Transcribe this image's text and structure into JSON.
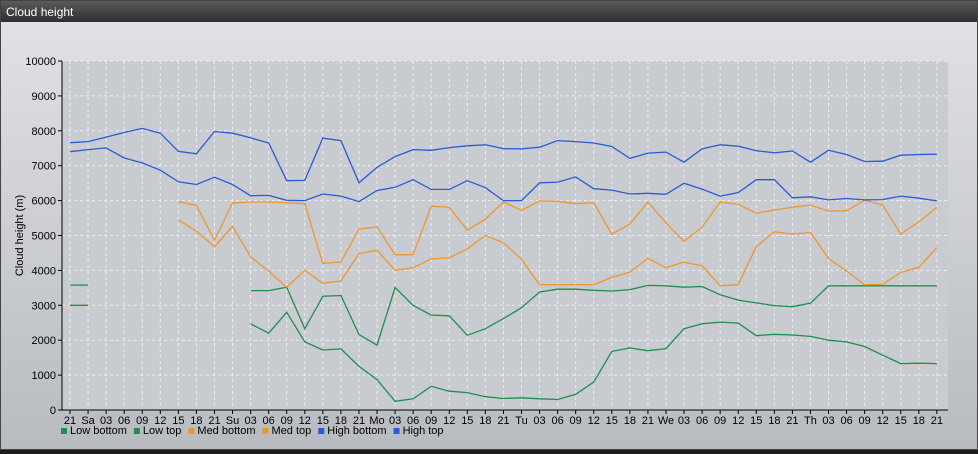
{
  "window": {
    "title": "Cloud height"
  },
  "chart_data": {
    "type": "line",
    "title": "",
    "ylabel": "Cloud height (m)",
    "xlabel": "",
    "ylim": [
      0,
      10000
    ],
    "yticks": [
      0,
      1000,
      2000,
      3000,
      4000,
      5000,
      6000,
      7000,
      8000,
      9000,
      10000
    ],
    "grid": true,
    "legend_position": "bottom-left",
    "categories": [
      "21",
      "Sa",
      "03",
      "06",
      "09",
      "12",
      "15",
      "18",
      "21",
      "Su",
      "03",
      "06",
      "09",
      "12",
      "15",
      "18",
      "21",
      "Mo",
      "03",
      "06",
      "09",
      "12",
      "15",
      "18",
      "21",
      "Tu",
      "03",
      "06",
      "09",
      "12",
      "15",
      "18",
      "21",
      "We",
      "03",
      "06",
      "09",
      "12",
      "15",
      "18",
      "21",
      "Th",
      "03",
      "06",
      "09",
      "12",
      "15",
      "18",
      "21"
    ],
    "series": [
      {
        "name": "Low bottom",
        "color": "#1e8f4e",
        "values": [
          3000,
          3000,
          null,
          null,
          null,
          null,
          null,
          null,
          null,
          null,
          2470,
          2200,
          2800,
          1950,
          1720,
          1750,
          1250,
          870,
          250,
          320,
          680,
          540,
          500,
          380,
          330,
          350,
          320,
          300,
          450,
          800,
          1680,
          1780,
          1700,
          1760,
          2330,
          2470,
          2520,
          2490,
          2130,
          2170,
          2150,
          2110,
          2000,
          1950,
          1820,
          1570,
          1330,
          1340,
          1330
        ]
      },
      {
        "name": "Low top",
        "color": "#1e8f4e",
        "values": [
          3580,
          3580,
          null,
          null,
          null,
          null,
          null,
          null,
          null,
          null,
          3420,
          3420,
          3520,
          2330,
          3260,
          3280,
          2160,
          1860,
          3510,
          3000,
          2720,
          2700,
          2140,
          2330,
          2620,
          2930,
          3380,
          3460,
          3460,
          3430,
          3410,
          3450,
          3570,
          3560,
          3520,
          3540,
          3300,
          3150,
          3070,
          2990,
          2960,
          3060,
          3560,
          3560,
          3560,
          3560,
          3560,
          3560,
          3560
        ]
      },
      {
        "name": "Med bottom",
        "color": "#f0962e",
        "values": [
          null,
          null,
          null,
          null,
          null,
          null,
          5450,
          5120,
          4680,
          5260,
          4390,
          3980,
          3520,
          4000,
          3630,
          3700,
          4480,
          4580,
          4000,
          4080,
          4330,
          4360,
          4620,
          5000,
          4790,
          4320,
          3590,
          3590,
          3590,
          3590,
          3800,
          3950,
          4340,
          4080,
          4240,
          4130,
          3560,
          3590,
          4680,
          5110,
          5040,
          5090,
          4340,
          3980,
          3590,
          3600,
          3940,
          4090,
          4650
        ]
      },
      {
        "name": "Med top",
        "color": "#f0962e",
        "values": [
          null,
          null,
          null,
          null,
          null,
          null,
          5970,
          5860,
          4870,
          5930,
          5960,
          5960,
          5940,
          5910,
          4200,
          4240,
          5180,
          5250,
          4450,
          4450,
          5840,
          5810,
          5150,
          5470,
          5960,
          5720,
          5990,
          5980,
          5910,
          5940,
          5040,
          5330,
          5960,
          5360,
          4830,
          5240,
          5960,
          5890,
          5640,
          5730,
          5810,
          5870,
          5700,
          5710,
          6010,
          5870,
          5040,
          5390,
          5810
        ]
      },
      {
        "name": "High bottom",
        "color": "#2a5bd6",
        "values": [
          7400,
          7460,
          7510,
          7220,
          7080,
          6870,
          6540,
          6460,
          6670,
          6460,
          6140,
          6150,
          6010,
          6000,
          6190,
          6130,
          5970,
          6290,
          6380,
          6600,
          6320,
          6320,
          6570,
          6370,
          6000,
          6000,
          6510,
          6530,
          6680,
          6340,
          6300,
          6190,
          6210,
          6180,
          6500,
          6330,
          6130,
          6230,
          6600,
          6600,
          6080,
          6110,
          6020,
          6060,
          6020,
          6030,
          6130,
          6070,
          5990
        ]
      },
      {
        "name": "High top",
        "color": "#2a5bd6",
        "values": [
          7660,
          7690,
          7820,
          7950,
          8070,
          7930,
          7410,
          7340,
          7980,
          7930,
          7800,
          7650,
          6570,
          6580,
          7790,
          7720,
          6510,
          6950,
          7260,
          7460,
          7440,
          7520,
          7570,
          7600,
          7490,
          7480,
          7530,
          7720,
          7690,
          7650,
          7550,
          7210,
          7360,
          7390,
          7100,
          7480,
          7600,
          7560,
          7430,
          7370,
          7420,
          7100,
          7440,
          7320,
          7120,
          7130,
          7300,
          7320,
          7330
        ]
      }
    ]
  }
}
